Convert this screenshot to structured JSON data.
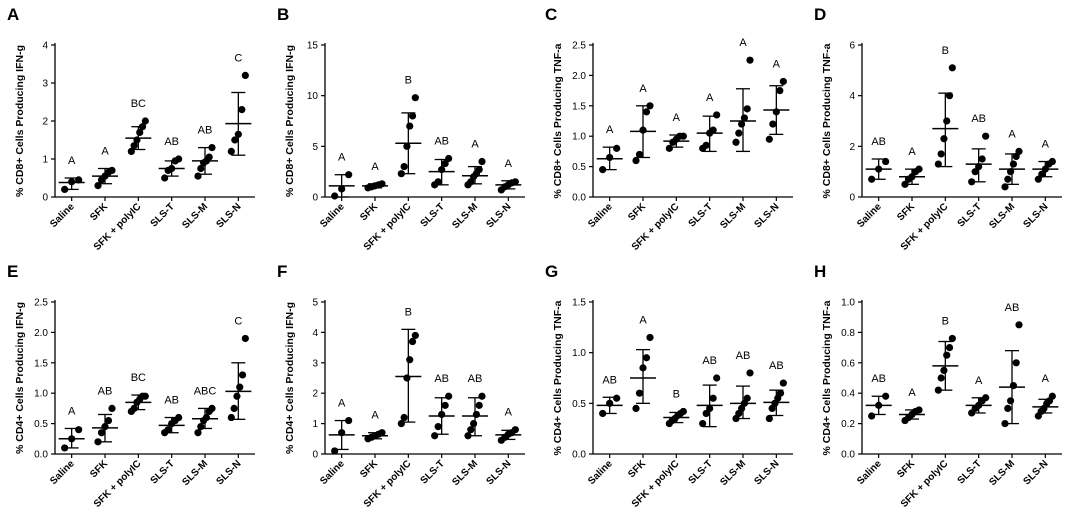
{
  "figure": {
    "groups": [
      "Saline",
      "SFK",
      "SFK + polyIC",
      "SLS-T",
      "SLS-M",
      "SLS-N"
    ]
  },
  "chart_data": [
    {
      "type": "scatter",
      "panel": "A",
      "ylabel": "% CD8+ Cells Producing IFN-g",
      "ylim": [
        0,
        4
      ],
      "yticks": [
        "0",
        "1",
        "2",
        "3",
        "4"
      ],
      "categories": [
        "Saline",
        "SFK",
        "SFK + polyIC",
        "SLS-T",
        "SLS-M",
        "SLS-N"
      ],
      "series": [
        {
          "name": "Saline",
          "points": [
            0.2,
            0.4,
            0.45
          ],
          "mean": 0.38,
          "sd_low": 0.2,
          "sd_high": 0.5,
          "letter": "A"
        },
        {
          "name": "SFK",
          "points": [
            0.3,
            0.45,
            0.55,
            0.65,
            0.7
          ],
          "mean": 0.55,
          "sd_low": 0.35,
          "sd_high": 0.75,
          "letter": "A"
        },
        {
          "name": "SFK + polyIC",
          "points": [
            1.2,
            1.35,
            1.5,
            1.7,
            1.85,
            2.0
          ],
          "mean": 1.55,
          "sd_low": 1.25,
          "sd_high": 1.85,
          "letter": "BC"
        },
        {
          "name": "SLS-T",
          "points": [
            0.5,
            0.7,
            0.75,
            0.95,
            1.0
          ],
          "mean": 0.75,
          "sd_low": 0.55,
          "sd_high": 0.95,
          "letter": "AB"
        },
        {
          "name": "SLS-M",
          "points": [
            0.55,
            0.75,
            0.9,
            0.95,
            1.05,
            1.3
          ],
          "mean": 0.95,
          "sd_low": 0.6,
          "sd_high": 1.3,
          "letter": "AB"
        },
        {
          "name": "SLS-N",
          "points": [
            1.2,
            1.5,
            1.65,
            2.3,
            3.2
          ],
          "mean": 1.93,
          "sd_low": 1.1,
          "sd_high": 2.75,
          "letter": "C"
        }
      ]
    },
    {
      "type": "scatter",
      "panel": "B",
      "ylabel": "% CD8+ Cells Producing IFN-g",
      "ylim": [
        0,
        15
      ],
      "yticks": [
        "0",
        "5",
        "10",
        "15"
      ],
      "categories": [
        "Saline",
        "SFK",
        "SFK + polyIC",
        "SLS-T",
        "SLS-M",
        "SLS-N"
      ],
      "series": [
        {
          "name": "Saline",
          "points": [
            0.1,
            0.8,
            2.2
          ],
          "mean": 1.1,
          "sd_low": 0.0,
          "sd_high": 2.2,
          "letter": "A"
        },
        {
          "name": "SFK",
          "points": [
            0.9,
            1.0,
            1.1,
            1.2,
            1.3
          ],
          "mean": 1.1,
          "sd_low": 0.9,
          "sd_high": 1.3,
          "letter": "A"
        },
        {
          "name": "SFK + polyIC",
          "points": [
            2.3,
            3.0,
            5.0,
            7.0,
            8.0,
            9.8
          ],
          "mean": 5.3,
          "sd_low": 2.3,
          "sd_high": 8.3,
          "letter": "B"
        },
        {
          "name": "SLS-T",
          "points": [
            1.2,
            1.5,
            2.7,
            3.3,
            3.8
          ],
          "mean": 2.5,
          "sd_low": 1.2,
          "sd_high": 3.7,
          "letter": "AB"
        },
        {
          "name": "SLS-M",
          "points": [
            1.2,
            1.5,
            2.0,
            2.3,
            2.7,
            3.5
          ],
          "mean": 2.1,
          "sd_low": 1.3,
          "sd_high": 3.0,
          "letter": "A"
        },
        {
          "name": "SLS-N",
          "points": [
            0.7,
            1.0,
            1.2,
            1.4,
            1.5
          ],
          "mean": 1.2,
          "sd_low": 0.8,
          "sd_high": 1.6,
          "letter": "A"
        }
      ]
    },
    {
      "type": "scatter",
      "panel": "C",
      "ylabel": "% CD8+ Cells Producing TNF-a",
      "ylim": [
        0,
        2.5
      ],
      "yticks": [
        "0.0",
        "0.5",
        "1.0",
        "1.5",
        "2.0",
        "2.5"
      ],
      "categories": [
        "Saline",
        "SFK",
        "SFK + polyIC",
        "SLS-T",
        "SLS-M",
        "SLS-N"
      ],
      "series": [
        {
          "name": "Saline",
          "points": [
            0.45,
            0.65,
            0.8
          ],
          "mean": 0.63,
          "sd_low": 0.45,
          "sd_high": 0.82,
          "letter": "A"
        },
        {
          "name": "SFK",
          "points": [
            0.6,
            0.7,
            1.1,
            1.4,
            1.5
          ],
          "mean": 1.08,
          "sd_low": 0.65,
          "sd_high": 1.5,
          "letter": "A"
        },
        {
          "name": "SFK + polyIC",
          "points": [
            0.8,
            0.9,
            0.95,
            1.0,
            1.0
          ],
          "mean": 0.92,
          "sd_low": 0.82,
          "sd_high": 1.02,
          "letter": "A"
        },
        {
          "name": "SLS-T",
          "points": [
            0.8,
            0.85,
            1.05,
            1.1,
            1.35
          ],
          "mean": 1.05,
          "sd_low": 0.75,
          "sd_high": 1.33,
          "letter": "A"
        },
        {
          "name": "SLS-M",
          "points": [
            0.9,
            1.05,
            1.2,
            1.3,
            1.45,
            2.25
          ],
          "mean": 1.25,
          "sd_low": 0.75,
          "sd_high": 1.78,
          "letter": "A"
        },
        {
          "name": "SLS-N",
          "points": [
            0.95,
            1.2,
            1.4,
            1.75,
            1.9
          ],
          "mean": 1.43,
          "sd_low": 1.03,
          "sd_high": 1.83,
          "letter": "A"
        }
      ]
    },
    {
      "type": "scatter",
      "panel": "D",
      "ylabel": "% CD8+ Cells Producing TNF-a",
      "ylim": [
        0,
        6
      ],
      "yticks": [
        "0",
        "2",
        "4",
        "6"
      ],
      "categories": [
        "Saline",
        "SFK",
        "SFK + polyIC",
        "SLS-T",
        "SLS-M",
        "SLS-N"
      ],
      "series": [
        {
          "name": "Saline",
          "points": [
            0.7,
            1.1,
            1.4
          ],
          "mean": 1.1,
          "sd_low": 0.7,
          "sd_high": 1.5,
          "letter": "AB"
        },
        {
          "name": "SFK",
          "points": [
            0.5,
            0.7,
            0.8,
            1.0,
            1.1
          ],
          "mean": 0.8,
          "sd_low": 0.5,
          "sd_high": 1.1,
          "letter": "A"
        },
        {
          "name": "SFK + polyIC",
          "points": [
            1.3,
            1.7,
            2.3,
            3.0,
            4.0,
            5.1
          ],
          "mean": 2.7,
          "sd_low": 1.2,
          "sd_high": 4.1,
          "letter": "B"
        },
        {
          "name": "SLS-T",
          "points": [
            0.6,
            1.0,
            1.2,
            1.5,
            2.4
          ],
          "mean": 1.3,
          "sd_low": 0.6,
          "sd_high": 1.9,
          "letter": "AB"
        },
        {
          "name": "SLS-M",
          "points": [
            0.4,
            0.7,
            1.0,
            1.3,
            1.6,
            1.8
          ],
          "mean": 1.1,
          "sd_low": 0.5,
          "sd_high": 1.7,
          "letter": "A"
        },
        {
          "name": "SLS-N",
          "points": [
            0.7,
            0.9,
            1.1,
            1.3,
            1.4
          ],
          "mean": 1.1,
          "sd_low": 0.8,
          "sd_high": 1.4,
          "letter": "A"
        }
      ]
    },
    {
      "type": "scatter",
      "panel": "E",
      "ylabel": "% CD4+ Cells Producing IFN-g",
      "ylim": [
        0,
        2.5
      ],
      "yticks": [
        "0.0",
        "0.5",
        "1.0",
        "1.5",
        "2.0",
        "2.5"
      ],
      "categories": [
        "Saline",
        "SFK",
        "SFK + polyIC",
        "SLS-T",
        "SLS-M",
        "SLS-N"
      ],
      "series": [
        {
          "name": "Saline",
          "points": [
            0.1,
            0.25,
            0.4
          ],
          "mean": 0.25,
          "sd_low": 0.1,
          "sd_high": 0.42,
          "letter": "A"
        },
        {
          "name": "SFK",
          "points": [
            0.2,
            0.35,
            0.45,
            0.55,
            0.75
          ],
          "mean": 0.43,
          "sd_low": 0.2,
          "sd_high": 0.65,
          "letter": "AB"
        },
        {
          "name": "SFK + polyIC",
          "points": [
            0.7,
            0.75,
            0.85,
            0.9,
            0.95,
            0.95
          ],
          "mean": 0.85,
          "sd_low": 0.73,
          "sd_high": 0.97,
          "letter": "BC"
        },
        {
          "name": "SLS-T",
          "points": [
            0.35,
            0.4,
            0.5,
            0.55,
            0.6
          ],
          "mean": 0.47,
          "sd_low": 0.35,
          "sd_high": 0.6,
          "letter": "AB"
        },
        {
          "name": "SLS-M",
          "points": [
            0.35,
            0.45,
            0.55,
            0.6,
            0.7,
            0.75
          ],
          "mean": 0.58,
          "sd_low": 0.42,
          "sd_high": 0.75,
          "letter": "ABC"
        },
        {
          "name": "SLS-N",
          "points": [
            0.6,
            0.75,
            0.95,
            1.1,
            1.3,
            1.9
          ],
          "mean": 1.03,
          "sd_low": 0.57,
          "sd_high": 1.5,
          "letter": "C"
        }
      ]
    },
    {
      "type": "scatter",
      "panel": "F",
      "ylabel": "% CD4+ Cells Producing IFN-g",
      "ylim": [
        0,
        5
      ],
      "yticks": [
        "0",
        "1",
        "2",
        "3",
        "4",
        "5"
      ],
      "categories": [
        "Saline",
        "SFK",
        "SFK + polyIC",
        "SLS-T",
        "SLS-M",
        "SLS-N"
      ],
      "series": [
        {
          "name": "Saline",
          "points": [
            0.1,
            0.7,
            1.1
          ],
          "mean": 0.63,
          "sd_low": 0.15,
          "sd_high": 1.1,
          "letter": "A"
        },
        {
          "name": "SFK",
          "points": [
            0.5,
            0.55,
            0.6,
            0.65,
            0.7
          ],
          "mean": 0.6,
          "sd_low": 0.5,
          "sd_high": 0.7,
          "letter": "A"
        },
        {
          "name": "SFK + polyIC",
          "points": [
            1.0,
            1.2,
            2.5,
            3.1,
            3.7,
            3.9
          ],
          "mean": 2.55,
          "sd_low": 1.05,
          "sd_high": 4.1,
          "letter": "B"
        },
        {
          "name": "SLS-T",
          "points": [
            0.6,
            0.9,
            1.3,
            1.6,
            1.9
          ],
          "mean": 1.25,
          "sd_low": 0.65,
          "sd_high": 1.85,
          "letter": "AB"
        },
        {
          "name": "SLS-M",
          "points": [
            0.6,
            0.8,
            1.0,
            1.3,
            1.6,
            1.9
          ],
          "mean": 1.25,
          "sd_low": 0.6,
          "sd_high": 1.85,
          "letter": "AB"
        },
        {
          "name": "SLS-N",
          "points": [
            0.45,
            0.55,
            0.65,
            0.7,
            0.8
          ],
          "mean": 0.63,
          "sd_low": 0.48,
          "sd_high": 0.78,
          "letter": "A"
        }
      ]
    },
    {
      "type": "scatter",
      "panel": "G",
      "ylabel": "% CD4+ Cells Producing TNF-a",
      "ylim": [
        0,
        1.5
      ],
      "yticks": [
        "0.0",
        "0.5",
        "1.0",
        "1.5"
      ],
      "categories": [
        "Saline",
        "SFK",
        "SFK + polyIC",
        "SLS-T",
        "SLS-M",
        "SLS-N"
      ],
      "series": [
        {
          "name": "Saline",
          "points": [
            0.4,
            0.5,
            0.55
          ],
          "mean": 0.48,
          "sd_low": 0.4,
          "sd_high": 0.56,
          "letter": "AB"
        },
        {
          "name": "SFK",
          "points": [
            0.45,
            0.6,
            0.85,
            0.95,
            1.15
          ],
          "mean": 0.75,
          "sd_low": 0.5,
          "sd_high": 1.03,
          "letter": "A"
        },
        {
          "name": "SFK + polyIC",
          "points": [
            0.3,
            0.33,
            0.35,
            0.38,
            0.4,
            0.42
          ],
          "mean": 0.36,
          "sd_low": 0.31,
          "sd_high": 0.41,
          "letter": "B"
        },
        {
          "name": "SLS-T",
          "points": [
            0.3,
            0.4,
            0.45,
            0.55,
            0.75
          ],
          "mean": 0.48,
          "sd_low": 0.27,
          "sd_high": 0.68,
          "letter": "AB"
        },
        {
          "name": "SLS-M",
          "points": [
            0.35,
            0.4,
            0.45,
            0.5,
            0.55,
            0.8
          ],
          "mean": 0.5,
          "sd_low": 0.35,
          "sd_high": 0.67,
          "letter": "AB"
        },
        {
          "name": "SLS-N",
          "points": [
            0.35,
            0.45,
            0.5,
            0.55,
            0.6,
            0.7
          ],
          "mean": 0.51,
          "sd_low": 0.38,
          "sd_high": 0.63,
          "letter": "AB"
        }
      ]
    },
    {
      "type": "scatter",
      "panel": "H",
      "ylabel": "% CD4+ Cells Producing TNF-a",
      "ylim": [
        0,
        1.0
      ],
      "yticks": [
        "0.0",
        "0.2",
        "0.4",
        "0.6",
        "0.8",
        "1.0"
      ],
      "categories": [
        "Saline",
        "SFK",
        "SFK + polyIC",
        "SLS-T",
        "SLS-M",
        "SLS-N"
      ],
      "series": [
        {
          "name": "Saline",
          "points": [
            0.25,
            0.32,
            0.38
          ],
          "mean": 0.32,
          "sd_low": 0.26,
          "sd_high": 0.38,
          "letter": "AB"
        },
        {
          "name": "SFK",
          "points": [
            0.22,
            0.24,
            0.26,
            0.28,
            0.29
          ],
          "mean": 0.26,
          "sd_low": 0.23,
          "sd_high": 0.29,
          "letter": "A"
        },
        {
          "name": "SFK + polyIC",
          "points": [
            0.42,
            0.5,
            0.55,
            0.65,
            0.7,
            0.76
          ],
          "mean": 0.58,
          "sd_low": 0.42,
          "sd_high": 0.74,
          "letter": "B"
        },
        {
          "name": "SLS-T",
          "points": [
            0.27,
            0.3,
            0.32,
            0.35,
            0.37
          ],
          "mean": 0.32,
          "sd_low": 0.27,
          "sd_high": 0.37,
          "letter": "A"
        },
        {
          "name": "SLS-M",
          "points": [
            0.2,
            0.3,
            0.35,
            0.45,
            0.6,
            0.85
          ],
          "mean": 0.44,
          "sd_low": 0.2,
          "sd_high": 0.68,
          "letter": "AB"
        },
        {
          "name": "SLS-N",
          "points": [
            0.25,
            0.28,
            0.3,
            0.33,
            0.35,
            0.38
          ],
          "mean": 0.31,
          "sd_low": 0.27,
          "sd_high": 0.36,
          "letter": "A"
        }
      ]
    }
  ]
}
